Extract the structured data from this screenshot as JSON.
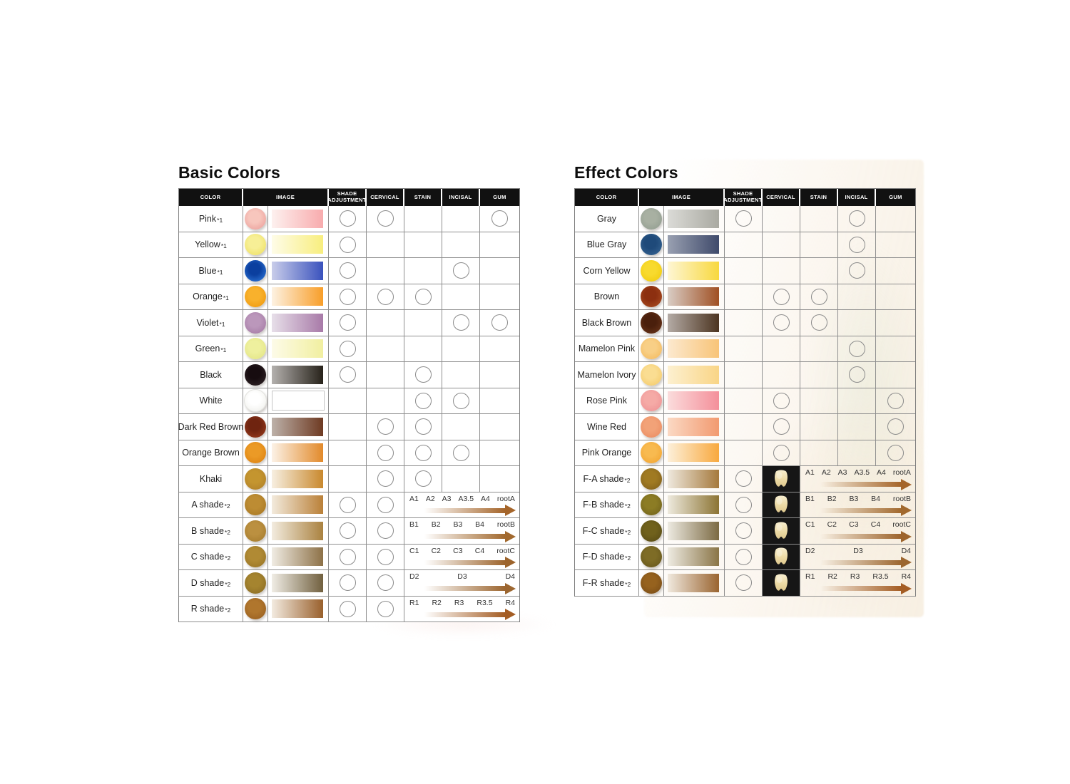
{
  "page": {
    "background": "#ffffff"
  },
  "columns": {
    "headers": [
      "COLOR",
      "IMAGE",
      "SHADE ADJUSTMENT",
      "CERVICAL",
      "STAIN",
      "INCISAL",
      "GUM"
    ],
    "mark_keys": [
      "shade_adjustment",
      "cervical",
      "stain",
      "incisal",
      "gum"
    ]
  },
  "styles": {
    "grid_line": "#8f8f8f",
    "header_bg": "#111111",
    "header_text": "#ffffff",
    "circle_border": "#8b8b8b",
    "tooth_cell_bg": "#161616"
  },
  "basic": {
    "title": "Basic Colors",
    "rows": [
      {
        "label": "Pink",
        "note": "*1",
        "dot_center": "#f7c6bd",
        "dot_edge": "#eda5a0",
        "bar_from": "#fdf1ef",
        "bar_to": "#f8abad",
        "marks": [
          "shade_adjustment",
          "cervical",
          "gum"
        ]
      },
      {
        "label": "Yellow",
        "note": "*1",
        "dot_center": "#f7ef96",
        "dot_edge": "#efe26a",
        "bar_from": "#fefce8",
        "bar_to": "#f8ee7e",
        "marks": [
          "shade_adjustment"
        ]
      },
      {
        "label": "Blue",
        "note": "*1",
        "dot_center": "#0b3f9f",
        "dot_edge": "#2a6fd0",
        "bar_from": "#c9cdea",
        "bar_to": "#3a52bd",
        "marks": [
          "shade_adjustment",
          "incisal"
        ]
      },
      {
        "label": "Orange",
        "note": "*1",
        "dot_center": "#f8b12c",
        "dot_edge": "#f09c12",
        "bar_from": "#fdf2e2",
        "bar_to": "#f89e29",
        "marks": [
          "shade_adjustment",
          "cervical",
          "stain"
        ]
      },
      {
        "label": "Violet",
        "note": "*1",
        "dot_center": "#bb97bb",
        "dot_edge": "#a87fa8",
        "bar_from": "#e7dfe9",
        "bar_to": "#a87aa8",
        "marks": [
          "shade_adjustment",
          "incisal",
          "gum"
        ]
      },
      {
        "label": "Green",
        "note": "*1",
        "dot_center": "#eef09e",
        "dot_edge": "#e4e687",
        "bar_from": "#fdfbe8",
        "bar_to": "#f1efa0",
        "marks": [
          "shade_adjustment"
        ]
      },
      {
        "label": "Black",
        "note": "",
        "dot_center": "#170c10",
        "dot_edge": "#2c2023",
        "bar_from": "#b4b1ae",
        "bar_to": "#27221a",
        "marks": [
          "shade_adjustment",
          "stain"
        ]
      },
      {
        "label": "White",
        "note": "",
        "dot_center": "#ffffff",
        "dot_edge": "#f1f1ed",
        "bar_from": "#ffffff",
        "bar_to": "#ffffff",
        "bar_border": "#c4c4c4",
        "marks": [
          "stain",
          "incisal"
        ]
      },
      {
        "label": "Dark Red Brown",
        "note": "",
        "dot_center": "#6f2410",
        "dot_edge": "#93381b",
        "bar_from": "#bdb1a9",
        "bar_to": "#6e3a22",
        "marks": [
          "cervical",
          "stain"
        ]
      },
      {
        "label": "Orange Brown",
        "note": "",
        "dot_center": "#eb9a26",
        "dot_edge": "#df8514",
        "bar_from": "#fcf2e6",
        "bar_to": "#e28a2b",
        "marks": [
          "cervical",
          "stain",
          "incisal"
        ]
      },
      {
        "label": "Khaki",
        "note": "",
        "dot_center": "#c4952f",
        "dot_edge": "#b3832a",
        "bar_from": "#f7efe1",
        "bar_to": "#c9892e",
        "marks": [
          "cervical",
          "stain"
        ]
      },
      {
        "label": "A shade",
        "note": "*2",
        "dot_center": "#bd8c33",
        "dot_edge": "#ab7b26",
        "bar_from": "#f3ebdd",
        "bar_to": "#ba8038",
        "marks": [
          "shade_adjustment",
          "cervical"
        ],
        "arrow_labels": [
          "A1",
          "A2",
          "A3",
          "A3.5",
          "A4",
          "rootA"
        ],
        "arrow_color": "#a5652a"
      },
      {
        "label": "B shade",
        "note": "*2",
        "dot_center": "#bb9040",
        "dot_edge": "#a87e30",
        "bar_from": "#f3ecdf",
        "bar_to": "#aa8240",
        "marks": [
          "shade_adjustment",
          "cervical"
        ],
        "arrow_labels": [
          "B1",
          "B2",
          "B3",
          "B4",
          "rootB"
        ],
        "arrow_color": "#a2692e"
      },
      {
        "label": "C shade",
        "note": "*2",
        "dot_center": "#b08a34",
        "dot_edge": "#9c7828",
        "bar_from": "#f0ece3",
        "bar_to": "#8d7147",
        "marks": [
          "shade_adjustment",
          "cervical"
        ],
        "arrow_labels": [
          "C1",
          "C2",
          "C3",
          "C4",
          "rootC"
        ],
        "arrow_color": "#9d642c"
      },
      {
        "label": "D shade",
        "note": "*2",
        "dot_center": "#a5842f",
        "dot_edge": "#8f7026",
        "bar_from": "#f0ede5",
        "bar_to": "#71603f",
        "marks": [
          "shade_adjustment",
          "cervical"
        ],
        "arrow_labels": [
          "D2",
          "D3",
          "D4"
        ],
        "arrow_color": "#9c6630"
      },
      {
        "label": "R shade",
        "note": "*2",
        "dot_center": "#b0762d",
        "dot_edge": "#9c6222",
        "bar_from": "#f3ebe0",
        "bar_to": "#99602c",
        "marks": [
          "shade_adjustment",
          "cervical"
        ],
        "arrow_labels": [
          "R1",
          "R2",
          "R3",
          "R3.5",
          "R4"
        ],
        "arrow_color": "#a45d24"
      }
    ]
  },
  "effect": {
    "title": "Effect Colors",
    "rows": [
      {
        "label": "Gray",
        "note": "",
        "dot_center": "#a8b0a2",
        "dot_edge": "#95a093",
        "bar_from": "#dbdbd7",
        "bar_to": "#a9a9a1",
        "marks": [
          "shade_adjustment",
          "incisal"
        ]
      },
      {
        "label": "Blue Gray",
        "note": "",
        "dot_center": "#1f4a7a",
        "dot_edge": "#33608e",
        "bar_from": "#99a0b1",
        "bar_to": "#3f4a6b",
        "marks": [
          "incisal"
        ]
      },
      {
        "label": "Corn Yellow",
        "note": "",
        "dot_center": "#f8da2e",
        "dot_edge": "#f2cd12",
        "bar_from": "#fef6d4",
        "bar_to": "#f8d83e",
        "marks": [
          "incisal"
        ]
      },
      {
        "label": "Brown",
        "note": "",
        "dot_center": "#8c2f10",
        "dot_edge": "#a5481e",
        "bar_from": "#d9cdc5",
        "bar_to": "#a05023",
        "marks": [
          "cervical",
          "stain"
        ]
      },
      {
        "label": "Black Brown",
        "note": "",
        "dot_center": "#4a1f0c",
        "dot_edge": "#663218",
        "bar_from": "#b4aba5",
        "bar_to": "#4c3420",
        "marks": [
          "cervical",
          "stain"
        ]
      },
      {
        "label": "Mamelon Pink",
        "note": "",
        "dot_center": "#f8cf86",
        "dot_edge": "#f4bd64",
        "bar_from": "#fce9cf",
        "bar_to": "#f8c478",
        "marks": [
          "incisal"
        ]
      },
      {
        "label": "Mamelon Ivory",
        "note": "",
        "dot_center": "#fadd92",
        "dot_edge": "#f5cd70",
        "bar_from": "#fdf0d0",
        "bar_to": "#f9d586",
        "marks": [
          "incisal"
        ]
      },
      {
        "label": "Rose Pink",
        "note": "",
        "dot_center": "#f5aaa6",
        "dot_edge": "#ef9597",
        "bar_from": "#fbdcdc",
        "bar_to": "#f48f9a",
        "marks": [
          "cervical",
          "gum"
        ]
      },
      {
        "label": "Wine Red",
        "note": "",
        "dot_center": "#f2a278",
        "dot_edge": "#ec8f64",
        "bar_from": "#fbd9c4",
        "bar_to": "#f29a70",
        "marks": [
          "cervical",
          "gum"
        ]
      },
      {
        "label": "Pink Orange",
        "note": "",
        "dot_center": "#f8ba50",
        "dot_edge": "#f3a735",
        "bar_from": "#fdf0da",
        "bar_to": "#f8a93e",
        "marks": [
          "cervical",
          "gum"
        ]
      },
      {
        "label": "F-A shade",
        "note": "*2",
        "dot_center": "#a07a22",
        "dot_edge": "#86641c",
        "bar_from": "#efe9de",
        "bar_to": "#a5793c",
        "marks": [
          "shade_adjustment"
        ],
        "tooth": true,
        "arrow_labels": [
          "A1",
          "A2",
          "A3",
          "A3.5",
          "A4",
          "rootA"
        ],
        "arrow_color": "#a5652a"
      },
      {
        "label": "F-B shade",
        "note": "*2",
        "dot_center": "#8c7c24",
        "dot_edge": "#75661c",
        "bar_from": "#eeeade",
        "bar_to": "#8c7433",
        "marks": [
          "shade_adjustment"
        ],
        "tooth": true,
        "arrow_labels": [
          "B1",
          "B2",
          "B3",
          "B4",
          "rootB"
        ],
        "arrow_color": "#a2692e"
      },
      {
        "label": "F-C shade",
        "note": "*2",
        "dot_center": "#70611c",
        "dot_edge": "#5c4f16",
        "bar_from": "#edeae1",
        "bar_to": "#7c6a43",
        "marks": [
          "shade_adjustment"
        ],
        "tooth": true,
        "arrow_labels": [
          "C1",
          "C2",
          "C3",
          "C4",
          "rootC"
        ],
        "arrow_color": "#9d642c"
      },
      {
        "label": "F-D shade",
        "note": "*2",
        "dot_center": "#7e6c26",
        "dot_edge": "#6a5a1e",
        "bar_from": "#eeebe2",
        "bar_to": "#8a7547",
        "marks": [
          "shade_adjustment"
        ],
        "tooth": true,
        "arrow_labels": [
          "D2",
          "D3",
          "D4"
        ],
        "arrow_color": "#9c6630"
      },
      {
        "label": "F-R shade",
        "note": "*2",
        "dot_center": "#96621e",
        "dot_edge": "#7e5018",
        "bar_from": "#f0e9de",
        "bar_to": "#9a6430",
        "marks": [
          "shade_adjustment"
        ],
        "tooth": true,
        "arrow_labels": [
          "R1",
          "R2",
          "R3",
          "R3.5",
          "R4"
        ],
        "arrow_color": "#a45d24"
      }
    ]
  }
}
